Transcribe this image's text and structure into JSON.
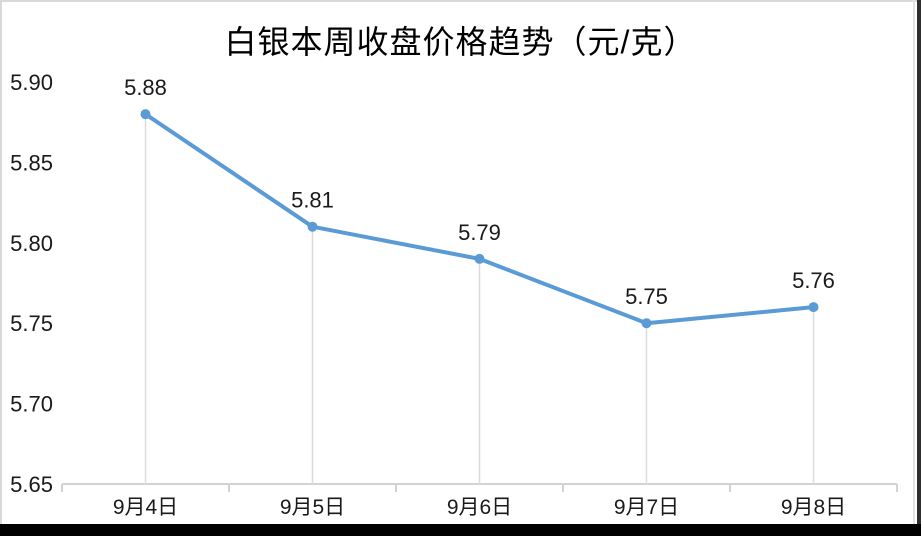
{
  "chart_data": {
    "type": "line",
    "title": "白银本周收盘价格趋势（元/克）",
    "categories": [
      "9月4日",
      "9月5日",
      "9月6日",
      "9月7日",
      "9月8日"
    ],
    "values": [
      5.88,
      5.81,
      5.79,
      5.75,
      5.76
    ],
    "data_labels": [
      "5.88",
      "5.81",
      "5.79",
      "5.75",
      "5.76"
    ],
    "xlabel": "",
    "ylabel": "",
    "ylim": [
      5.65,
      5.9
    ],
    "ytick_step": 0.05,
    "ytick_labels": [
      "5.65",
      "5.70",
      "5.75",
      "5.80",
      "5.85",
      "5.90"
    ],
    "grid": "off",
    "legend": "none",
    "marker": "circle",
    "droplines": true,
    "colors": {
      "series": "#5B9BD5",
      "axis_line": "#d2d2d2",
      "dropline": "#dcdcdc",
      "text": "#1a1a1a",
      "title_text": "#000000",
      "background": "#ffffff"
    }
  }
}
